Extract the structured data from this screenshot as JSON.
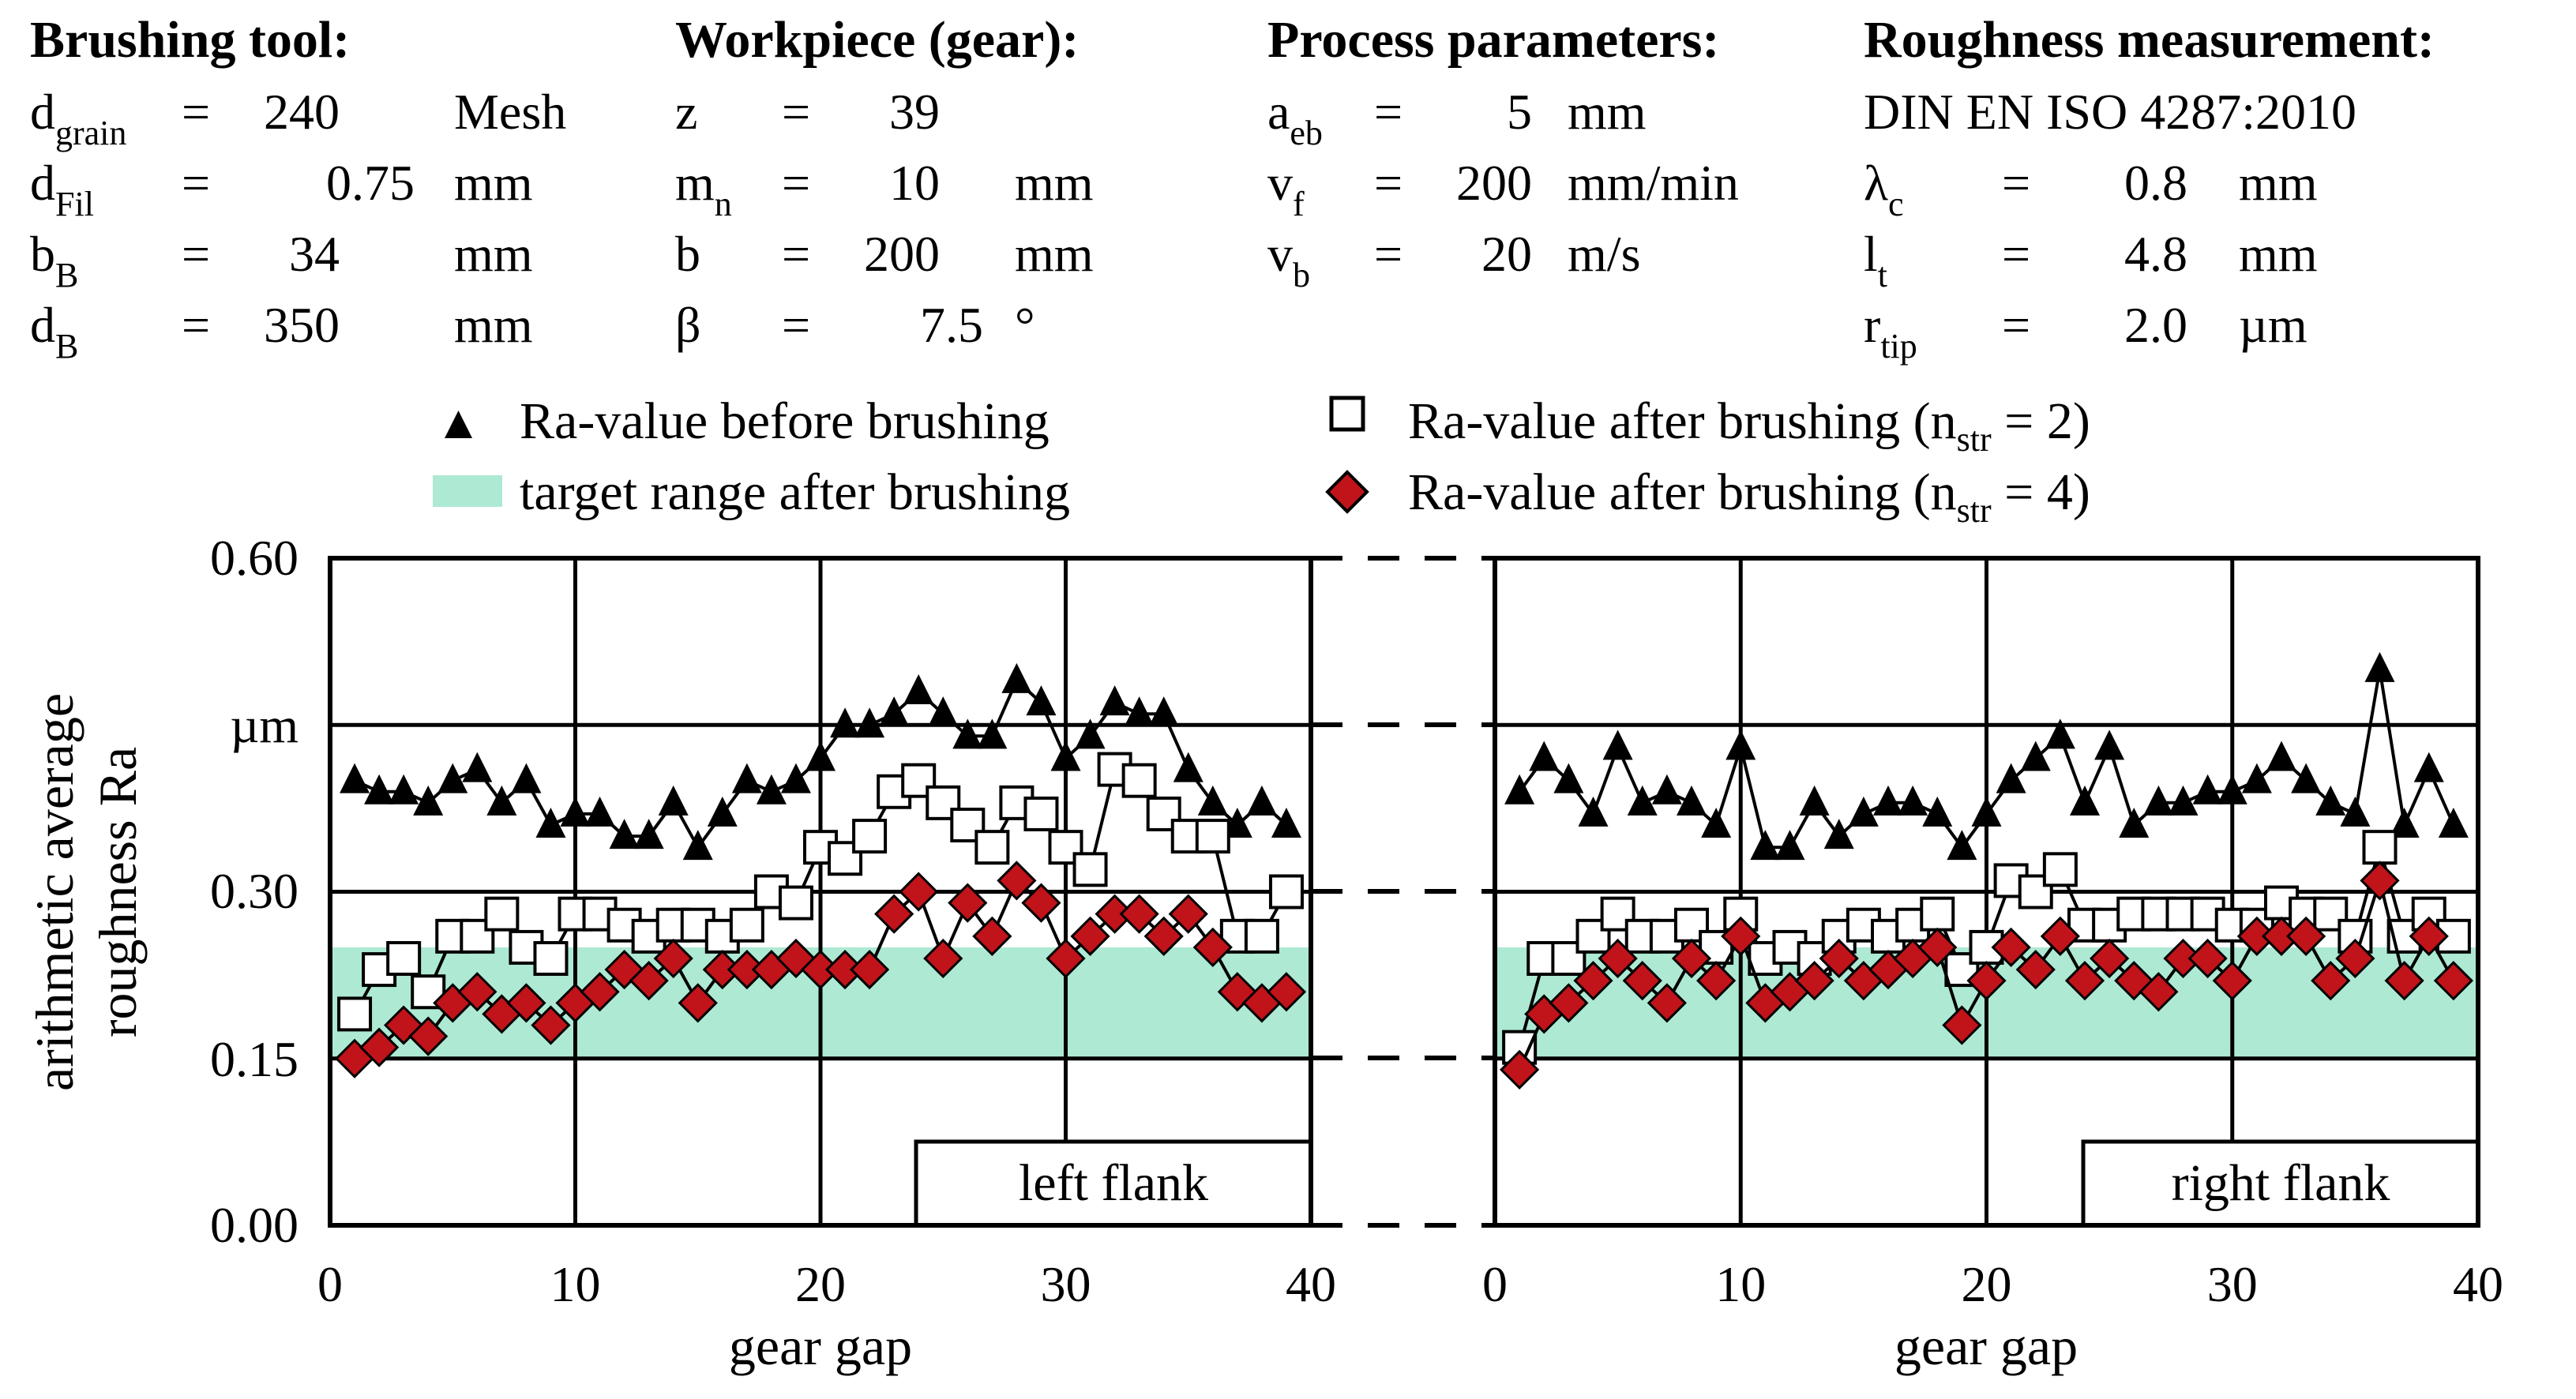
{
  "parameters": {
    "brushing_tool": {
      "title": "Brushing tool:",
      "rows": [
        {
          "sym": "d",
          "sub": "grain",
          "eq": "=",
          "val": "240",
          "unit": "Mesh"
        },
        {
          "sym": "d",
          "sub": "Fil",
          "eq": "=",
          "val": "0.75",
          "unit": "mm"
        },
        {
          "sym": "b",
          "sub": "B",
          "eq": "=",
          "val": "34",
          "unit": "mm"
        },
        {
          "sym": "d",
          "sub": "B",
          "eq": "=",
          "val": "350",
          "unit": "mm"
        }
      ]
    },
    "workpiece": {
      "title": "Workpiece (gear):",
      "rows": [
        {
          "sym": "z",
          "sub": "",
          "eq": "=",
          "val": "39",
          "unit": ""
        },
        {
          "sym": "m",
          "sub": "n",
          "eq": "=",
          "val": "10",
          "unit": "mm"
        },
        {
          "sym": "b",
          "sub": "",
          "eq": "=",
          "val": "200",
          "unit": "mm"
        },
        {
          "sym": "β",
          "sub": "",
          "eq": "=",
          "val": "7.5",
          "unit": "°"
        }
      ]
    },
    "process": {
      "title": "Process parameters:",
      "rows": [
        {
          "sym": "a",
          "sub": "eb",
          "eq": "=",
          "val": "5",
          "unit": "mm"
        },
        {
          "sym": "v",
          "sub": "f",
          "eq": "=",
          "val": "200",
          "unit": "mm/min"
        },
        {
          "sym": "v",
          "sub": "b",
          "eq": "=",
          "val": "20",
          "unit": "m/s"
        }
      ]
    },
    "roughness": {
      "title": "Roughness measurement:",
      "standard": "DIN EN ISO 4287:2010",
      "rows": [
        {
          "sym": "λ",
          "sub": "c",
          "eq": "=",
          "val": "0.8",
          "unit": "mm"
        },
        {
          "sym": "l",
          "sub": "t",
          "eq": "=",
          "val": "4.8",
          "unit": "mm"
        },
        {
          "sym": "r",
          "sub": "tip",
          "eq": "=",
          "val": "2.0",
          "unit": "µm"
        }
      ]
    }
  },
  "legend": {
    "before": "Ra-value before brushing",
    "target": "target range after brushing",
    "after2_prefix": "Ra-value after brushing (n",
    "after2_sub": "str",
    "after2_suffix": " = 2)",
    "after4_prefix": "Ra-value after brushing (n",
    "after4_sub": "str",
    "after4_suffix": " = 4)"
  },
  "colors": {
    "target_fill": "#aee9d3",
    "diamond_fill": "#c0141a",
    "triangle_fill": "#000000",
    "square_fill": "#ffffff"
  },
  "chart_data": [
    {
      "type": "scatter",
      "panel_label": "left flank",
      "xlabel": "gear gap",
      "ylabel_line1": "arithmetic average",
      "ylabel_line2": "roughness Ra",
      "yunit_label": "µm",
      "xlim": [
        0,
        40
      ],
      "ylim": [
        0,
        0.6
      ],
      "xticks": [
        "0",
        "10",
        "20",
        "30",
        "40"
      ],
      "yticks": [
        "0.00",
        "0.15",
        "0.30",
        "",
        "0.60"
      ],
      "target_range": [
        0.15,
        0.25
      ],
      "series": [
        {
          "name": "Ra-value before brushing",
          "marker": "triangle",
          "x": [
            1,
            2,
            3,
            4,
            5,
            6,
            7,
            8,
            9,
            10,
            11,
            12,
            13,
            14,
            15,
            16,
            17,
            18,
            19,
            20,
            21,
            22,
            23,
            24,
            25,
            26,
            27,
            28,
            29,
            30,
            31,
            32,
            33,
            34,
            35,
            36,
            37,
            38,
            39
          ],
          "y": [
            0.4,
            0.39,
            0.39,
            0.38,
            0.4,
            0.41,
            0.38,
            0.4,
            0.36,
            0.37,
            0.37,
            0.35,
            0.35,
            0.38,
            0.34,
            0.37,
            0.4,
            0.39,
            0.4,
            0.42,
            0.45,
            0.45,
            0.46,
            0.48,
            0.46,
            0.44,
            0.44,
            0.49,
            0.47,
            0.42,
            0.44,
            0.47,
            0.46,
            0.46,
            0.41,
            0.38,
            0.36,
            0.38,
            0.36
          ]
        },
        {
          "name": "Ra-value after brushing (n_str = 2)",
          "marker": "square",
          "x": [
            1,
            2,
            3,
            4,
            5,
            6,
            7,
            8,
            9,
            10,
            11,
            12,
            13,
            14,
            15,
            16,
            17,
            18,
            19,
            20,
            21,
            22,
            23,
            24,
            25,
            26,
            27,
            28,
            29,
            30,
            31,
            32,
            33,
            34,
            35,
            36,
            37,
            38,
            39
          ],
          "y": [
            0.19,
            0.23,
            0.24,
            0.21,
            0.26,
            0.26,
            0.28,
            0.25,
            0.24,
            0.28,
            0.28,
            0.27,
            0.26,
            0.27,
            0.27,
            0.26,
            0.27,
            0.3,
            0.29,
            0.34,
            0.33,
            0.35,
            0.39,
            0.4,
            0.38,
            0.36,
            0.34,
            0.38,
            0.37,
            0.34,
            0.32,
            0.41,
            0.4,
            0.37,
            0.35,
            0.35,
            0.26,
            0.26,
            0.3
          ]
        },
        {
          "name": "Ra-value after brushing (n_str = 4)",
          "marker": "diamond",
          "x": [
            1,
            2,
            3,
            4,
            5,
            6,
            7,
            8,
            9,
            10,
            11,
            12,
            13,
            14,
            15,
            16,
            17,
            18,
            19,
            20,
            21,
            22,
            23,
            24,
            25,
            26,
            27,
            28,
            29,
            30,
            31,
            32,
            33,
            34,
            35,
            36,
            37,
            38,
            39
          ],
          "y": [
            0.15,
            0.16,
            0.18,
            0.17,
            0.2,
            0.21,
            0.19,
            0.2,
            0.18,
            0.2,
            0.21,
            0.23,
            0.22,
            0.24,
            0.2,
            0.23,
            0.23,
            0.23,
            0.24,
            0.23,
            0.23,
            0.23,
            0.28,
            0.3,
            0.24,
            0.29,
            0.26,
            0.31,
            0.29,
            0.24,
            0.26,
            0.28,
            0.28,
            0.26,
            0.28,
            0.25,
            0.21,
            0.2,
            0.21
          ]
        }
      ]
    },
    {
      "type": "scatter",
      "panel_label": "right flank",
      "xlabel": "gear gap",
      "xlim": [
        0,
        40
      ],
      "ylim": [
        0,
        0.6
      ],
      "xticks": [
        "0",
        "10",
        "20",
        "30",
        "40"
      ],
      "target_range": [
        0.15,
        0.25
      ],
      "series": [
        {
          "name": "Ra-value before brushing",
          "marker": "triangle",
          "x": [
            1,
            2,
            3,
            4,
            5,
            6,
            7,
            8,
            9,
            10,
            11,
            12,
            13,
            14,
            15,
            16,
            17,
            18,
            19,
            20,
            21,
            22,
            23,
            24,
            25,
            26,
            27,
            28,
            29,
            30,
            31,
            32,
            33,
            34,
            35,
            36,
            37,
            38,
            39
          ],
          "y": [
            0.39,
            0.42,
            0.4,
            0.37,
            0.43,
            0.38,
            0.39,
            0.38,
            0.36,
            0.43,
            0.34,
            0.34,
            0.38,
            0.35,
            0.37,
            0.38,
            0.38,
            0.37,
            0.34,
            0.37,
            0.4,
            0.42,
            0.44,
            0.38,
            0.43,
            0.36,
            0.38,
            0.38,
            0.39,
            0.39,
            0.4,
            0.42,
            0.4,
            0.38,
            0.37,
            0.5,
            0.36,
            0.41,
            0.36
          ]
        },
        {
          "name": "Ra-value after brushing (n_str = 2)",
          "marker": "square",
          "x": [
            1,
            2,
            3,
            4,
            5,
            6,
            7,
            8,
            9,
            10,
            11,
            12,
            13,
            14,
            15,
            16,
            17,
            18,
            19,
            20,
            21,
            22,
            23,
            24,
            25,
            26,
            27,
            28,
            29,
            30,
            31,
            32,
            33,
            34,
            35,
            36,
            37,
            38,
            39
          ],
          "y": [
            0.16,
            0.24,
            0.24,
            0.26,
            0.28,
            0.26,
            0.26,
            0.27,
            0.25,
            0.28,
            0.24,
            0.25,
            0.24,
            0.26,
            0.27,
            0.26,
            0.27,
            0.28,
            0.23,
            0.25,
            0.31,
            0.3,
            0.32,
            0.27,
            0.27,
            0.28,
            0.28,
            0.28,
            0.28,
            0.27,
            0.27,
            0.29,
            0.28,
            0.28,
            0.26,
            0.34,
            0.26,
            0.28,
            0.26
          ]
        },
        {
          "name": "Ra-value after brushing (n_str = 4)",
          "marker": "diamond",
          "x": [
            1,
            2,
            3,
            4,
            5,
            6,
            7,
            8,
            9,
            10,
            11,
            12,
            13,
            14,
            15,
            16,
            17,
            18,
            19,
            20,
            21,
            22,
            23,
            24,
            25,
            26,
            27,
            28,
            29,
            30,
            31,
            32,
            33,
            34,
            35,
            36,
            37,
            38,
            39
          ],
          "y": [
            0.14,
            0.19,
            0.2,
            0.22,
            0.24,
            0.22,
            0.2,
            0.24,
            0.22,
            0.26,
            0.2,
            0.21,
            0.22,
            0.24,
            0.22,
            0.23,
            0.24,
            0.25,
            0.18,
            0.22,
            0.25,
            0.23,
            0.26,
            0.22,
            0.24,
            0.22,
            0.21,
            0.24,
            0.24,
            0.22,
            0.26,
            0.26,
            0.26,
            0.22,
            0.24,
            0.31,
            0.22,
            0.26,
            0.22
          ]
        }
      ]
    }
  ]
}
